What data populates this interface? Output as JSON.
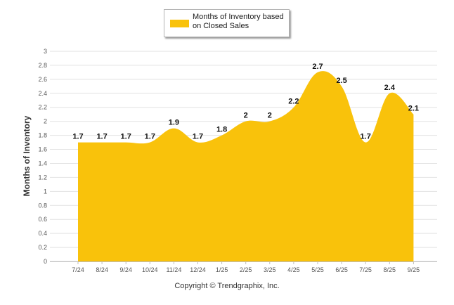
{
  "chart_data": {
    "type": "area",
    "title": "",
    "xlabel": "",
    "ylabel": "Months of Inventory",
    "ylim": [
      0,
      3
    ],
    "yticks": [
      "0",
      "0.2",
      "0.4",
      "0.6",
      "0.8",
      "1",
      "1.2",
      "1.4",
      "1.6",
      "1.8",
      "2",
      "2.2",
      "2.4",
      "2.6",
      "2.8",
      "3"
    ],
    "categories": [
      "7/24",
      "8/24",
      "9/24",
      "10/24",
      "11/24",
      "12/24",
      "1/25",
      "2/25",
      "3/25",
      "4/25",
      "5/25",
      "6/25",
      "7/25",
      "8/25",
      "9/25"
    ],
    "series": [
      {
        "name": "Months of Inventory based on Closed Sales",
        "values": [
          1.7,
          1.7,
          1.7,
          1.7,
          1.9,
          1.7,
          1.8,
          2,
          2,
          2.2,
          2.7,
          2.5,
          1.7,
          2.4,
          2.1
        ],
        "color": "#f9c20b"
      }
    ],
    "legend": "top-center",
    "grid": true
  },
  "legend_label": "Months of Inventory based on Closed Sales",
  "copyright": "Copyright © Trendgraphix, Inc."
}
